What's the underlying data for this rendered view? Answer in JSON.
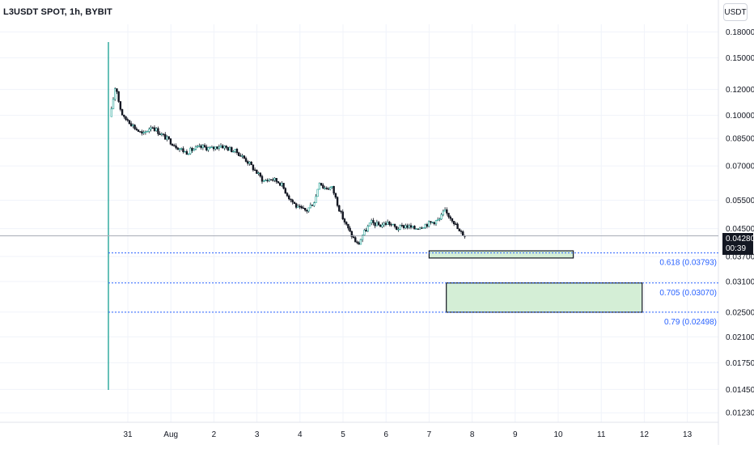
{
  "header": {
    "title": "L3USDT SPOT, 1h, BYBIT",
    "currency": "USDT"
  },
  "price_badge": {
    "price": "0.04280",
    "countdown": "00:39"
  },
  "chart_data": {
    "type": "candlestick",
    "title": "L3USDT SPOT, 1h, BYBIT",
    "yscale": "log",
    "ylim": [
      0.0115,
      0.19
    ],
    "y_ticks": [
      "0.18000",
      "0.15000",
      "0.12000",
      "0.10000",
      "0.08500",
      "0.07000",
      "0.05500",
      "0.04500",
      "0.03700",
      "0.03100",
      "0.02500",
      "0.02100",
      "0.01750",
      "0.01450",
      "0.01230"
    ],
    "x_ticks": [
      "31",
      "Aug",
      "2",
      "3",
      "4",
      "5",
      "6",
      "7",
      "8",
      "9",
      "10",
      "11",
      "12",
      "13"
    ],
    "last_price": 0.0428,
    "fib_levels": [
      {
        "ratio": 0.618,
        "value": 0.03793,
        "label": "0.618 (0.03793)"
      },
      {
        "ratio": 0.705,
        "value": 0.0307,
        "label": "0.705 (0.03070)"
      },
      {
        "ratio": 0.79,
        "value": 0.02498,
        "label": "0.79 (0.02498)"
      }
    ],
    "zones": [
      {
        "from_day": 7.0,
        "to_day": 10.35,
        "low": 0.0366,
        "high": 0.0385
      },
      {
        "from_day": 7.4,
        "to_day": 11.95,
        "low": 0.02498,
        "high": 0.0307
      }
    ],
    "price_path": [
      [
        -0.45,
        0.148
      ],
      [
        -0.42,
        0.095
      ],
      [
        -0.35,
        0.11
      ],
      [
        -0.28,
        0.125
      ],
      [
        -0.2,
        0.108
      ],
      [
        -0.1,
        0.098
      ],
      [
        0.0,
        0.097
      ],
      [
        0.15,
        0.092
      ],
      [
        0.35,
        0.087
      ],
      [
        0.55,
        0.093
      ],
      [
        0.75,
        0.088
      ],
      [
        0.95,
        0.084
      ],
      [
        1.15,
        0.08
      ],
      [
        1.35,
        0.077
      ],
      [
        1.55,
        0.079
      ],
      [
        1.75,
        0.08
      ],
      [
        1.95,
        0.079
      ],
      [
        2.15,
        0.081
      ],
      [
        2.35,
        0.079
      ],
      [
        2.55,
        0.077
      ],
      [
        2.75,
        0.073
      ],
      [
        2.95,
        0.068
      ],
      [
        3.15,
        0.063
      ],
      [
        3.35,
        0.064
      ],
      [
        3.55,
        0.062
      ],
      [
        3.75,
        0.056
      ],
      [
        3.95,
        0.052
      ],
      [
        4.15,
        0.051
      ],
      [
        4.35,
        0.055
      ],
      [
        4.45,
        0.063
      ],
      [
        4.55,
        0.06
      ],
      [
        4.75,
        0.06
      ],
      [
        4.95,
        0.05
      ],
      [
        5.15,
        0.044
      ],
      [
        5.35,
        0.04
      ],
      [
        5.45,
        0.043
      ],
      [
        5.65,
        0.047
      ],
      [
        5.85,
        0.046
      ],
      [
        6.05,
        0.047
      ],
      [
        6.25,
        0.045
      ],
      [
        6.45,
        0.046
      ],
      [
        6.65,
        0.045
      ],
      [
        6.85,
        0.046
      ],
      [
        7.05,
        0.047
      ],
      [
        7.25,
        0.048
      ],
      [
        7.35,
        0.051
      ],
      [
        7.55,
        0.048
      ],
      [
        7.7,
        0.044
      ],
      [
        7.85,
        0.0428
      ]
    ]
  }
}
